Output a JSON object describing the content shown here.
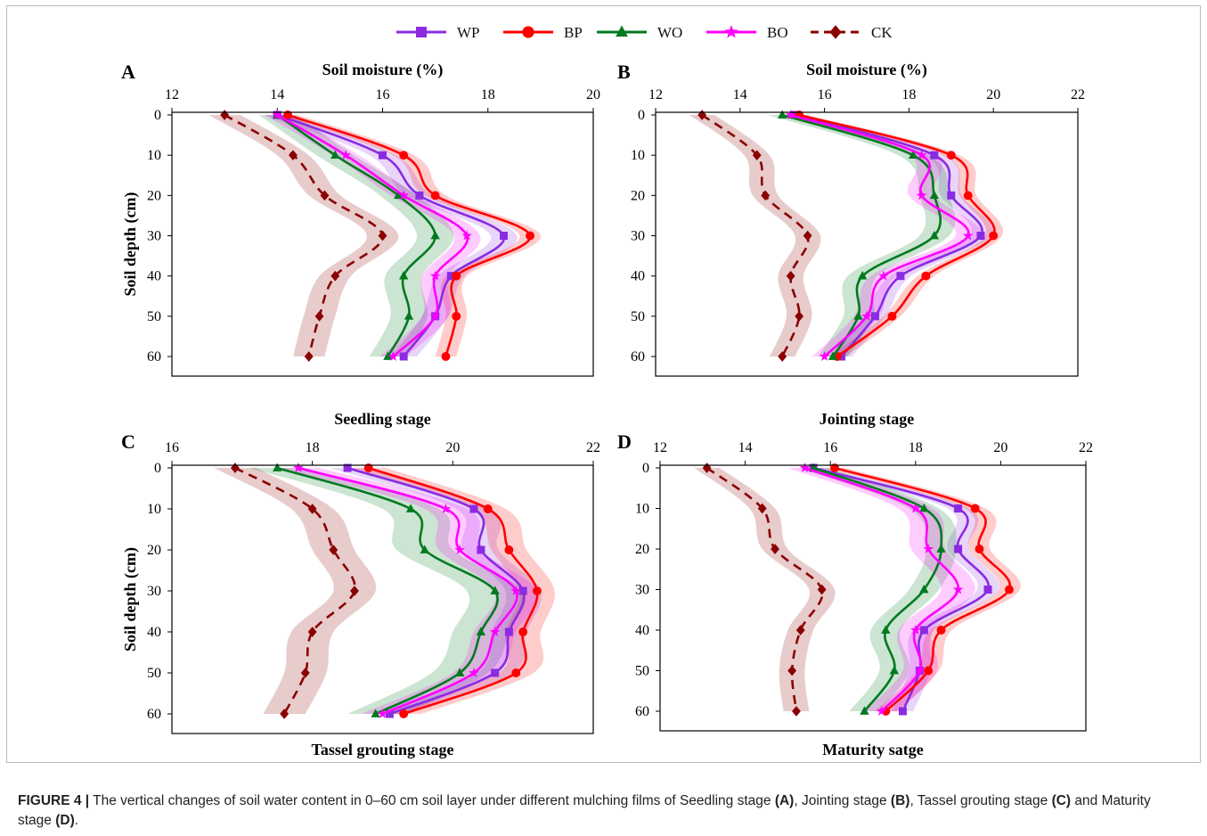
{
  "legend": [
    {
      "name": "WP",
      "color": "#8a2be2",
      "marker": "square"
    },
    {
      "name": "BP",
      "color": "#ff0000",
      "marker": "circle"
    },
    {
      "name": "WO",
      "color": "#007a1f",
      "marker": "triangle"
    },
    {
      "name": "BO",
      "color": "#ff00ff",
      "marker": "star"
    },
    {
      "name": "CK",
      "color": "#8b0000",
      "marker": "diamond"
    }
  ],
  "caption": {
    "label": "FIGURE 4 |",
    "t1": " The vertical changes of soil water content in 0–60 cm soil layer under different mulching films of Seedling stage ",
    "a": "(A)",
    "t2": ", Jointing stage ",
    "b": "(B)",
    "t3": ", Tassel grouting stage ",
    "c": "(C)",
    "t4": " and Maturity stage ",
    "d": "(D)",
    "t5": "."
  },
  "chart_data": [
    {
      "panel": "A",
      "type": "line",
      "title": "Seedling stage",
      "xlabel": "Soil moisture (%)",
      "ylabel": "Soil depth (cm)",
      "xlim": [
        12,
        20
      ],
      "xticks": [
        12,
        14,
        16,
        18,
        20
      ],
      "ylim": [
        0,
        60
      ],
      "yticks": [
        0,
        10,
        20,
        30,
        40,
        50,
        60
      ],
      "y_inverted": true,
      "x_axis_position": "top",
      "depth": [
        0,
        10,
        20,
        30,
        40,
        50,
        60
      ],
      "series": [
        {
          "name": "WP",
          "values": [
            14.0,
            16.0,
            16.7,
            18.3,
            17.3,
            17.0,
            16.4
          ],
          "band": 0.25
        },
        {
          "name": "BP",
          "values": [
            14.2,
            16.4,
            17.0,
            18.8,
            17.4,
            17.4,
            17.2
          ],
          "band": 0.2
        },
        {
          "name": "WO",
          "values": [
            14.0,
            15.1,
            16.3,
            17.0,
            16.4,
            16.5,
            16.1
          ],
          "band": 0.35
        },
        {
          "name": "BO",
          "values": [
            14.0,
            15.3,
            16.4,
            17.6,
            17.0,
            17.0,
            16.2
          ],
          "band": 0.25
        },
        {
          "name": "CK",
          "values": [
            13.0,
            14.3,
            14.9,
            16.0,
            15.1,
            14.8,
            14.6
          ],
          "band": 0.3
        }
      ]
    },
    {
      "panel": "B",
      "type": "line",
      "title": "Jointing stage",
      "xlabel": "Soil moisture (%)",
      "ylabel": "",
      "xlim": [
        12,
        22
      ],
      "xticks": [
        12,
        14,
        16,
        18,
        20,
        22
      ],
      "ylim": [
        0,
        60
      ],
      "yticks": [
        0,
        10,
        20,
        30,
        40,
        50,
        60
      ],
      "y_inverted": true,
      "x_axis_position": "top",
      "depth": [
        0,
        10,
        20,
        30,
        40,
        50,
        60
      ],
      "series": [
        {
          "name": "WP",
          "values": [
            15.3,
            18.6,
            19.0,
            19.7,
            17.8,
            17.2,
            16.4
          ],
          "band": 0.25
        },
        {
          "name": "BP",
          "values": [
            15.4,
            19.0,
            19.4,
            20.0,
            18.4,
            17.6,
            16.3
          ],
          "band": 0.2
        },
        {
          "name": "WO",
          "values": [
            15.0,
            18.1,
            18.6,
            18.6,
            16.9,
            16.8,
            16.2
          ],
          "band": 0.35
        },
        {
          "name": "BO",
          "values": [
            15.2,
            18.3,
            18.3,
            19.4,
            17.4,
            17.0,
            16.0
          ],
          "band": 0.3
        },
        {
          "name": "CK",
          "values": [
            13.1,
            14.4,
            14.6,
            15.6,
            15.2,
            15.4,
            15.0
          ],
          "band": 0.3
        }
      ]
    },
    {
      "panel": "C",
      "type": "line",
      "title": "Tassel grouting stage",
      "xlabel": "",
      "ylabel": "Soil depth (cm)",
      "xlim": [
        16,
        22
      ],
      "xticks": [
        16,
        18,
        20,
        22
      ],
      "ylim": [
        0,
        60
      ],
      "yticks": [
        0,
        10,
        20,
        30,
        40,
        50,
        60
      ],
      "y_inverted": true,
      "x_axis_position": "top",
      "depth": [
        0,
        10,
        20,
        30,
        40,
        50,
        60
      ],
      "series": [
        {
          "name": "WP",
          "values": [
            18.5,
            20.3,
            20.4,
            21.0,
            20.8,
            20.6,
            19.1
          ],
          "band": 0.25
        },
        {
          "name": "BP",
          "values": [
            18.8,
            20.5,
            20.8,
            21.2,
            21.0,
            20.9,
            19.3
          ],
          "band": 0.25
        },
        {
          "name": "WO",
          "values": [
            17.5,
            19.4,
            19.6,
            20.6,
            20.4,
            20.1,
            18.9
          ],
          "band": 0.4
        },
        {
          "name": "BO",
          "values": [
            17.8,
            19.9,
            20.1,
            20.9,
            20.6,
            20.3,
            19.0
          ],
          "band": 0.3
        },
        {
          "name": "CK",
          "values": [
            16.9,
            18.0,
            18.3,
            18.6,
            18.0,
            17.9,
            17.6
          ],
          "band": 0.3
        }
      ]
    },
    {
      "panel": "D",
      "type": "line",
      "title": "Maturity satge",
      "xlabel": "",
      "ylabel": "",
      "xlim": [
        12,
        22
      ],
      "xticks": [
        12,
        14,
        16,
        18,
        20,
        22
      ],
      "ylim": [
        0,
        60
      ],
      "yticks": [
        0,
        10,
        20,
        30,
        40,
        50,
        60
      ],
      "y_inverted": true,
      "x_axis_position": "top",
      "depth": [
        0,
        10,
        20,
        30,
        40,
        50,
        60
      ],
      "series": [
        {
          "name": "WP",
          "values": [
            15.6,
            19.0,
            19.0,
            19.7,
            18.2,
            18.1,
            17.7
          ],
          "band": 0.25
        },
        {
          "name": "BP",
          "values": [
            16.1,
            19.4,
            19.5,
            20.2,
            18.6,
            18.3,
            17.3
          ],
          "band": 0.25
        },
        {
          "name": "WO",
          "values": [
            15.6,
            18.2,
            18.6,
            18.2,
            17.3,
            17.5,
            16.8
          ],
          "band": 0.35
        },
        {
          "name": "BO",
          "values": [
            15.4,
            18.0,
            18.3,
            19.0,
            18.0,
            18.1,
            17.2
          ],
          "band": 0.4
        },
        {
          "name": "CK",
          "values": [
            13.1,
            14.4,
            14.7,
            15.8,
            15.3,
            15.1,
            15.2
          ],
          "band": 0.3
        }
      ]
    }
  ]
}
